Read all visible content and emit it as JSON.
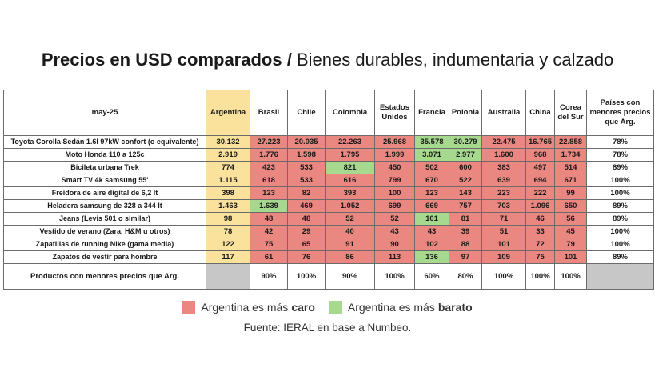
{
  "title": {
    "bold": "Precios en USD comparados /",
    "light": "Bienes durables, indumentaria y calzado"
  },
  "chart_data": {
    "type": "table",
    "corner_label": "may-25",
    "columns": [
      "Argentina",
      "Brasil",
      "Chile",
      "Colombia",
      "Estados Unidos",
      "Francia",
      "Polonia",
      "Australia",
      "China",
      "Corea del Sur",
      "Países con menores precios que Arg."
    ],
    "rows": [
      {
        "product": "Toyota Corolla Sedán 1.6l 97kW confort (o equivalente)",
        "values": [
          "30.132",
          "27.223",
          "20.035",
          "22.263",
          "25.968",
          "35.578",
          "30.279",
          "22.475",
          "16.765",
          "22.858"
        ],
        "status": [
          "arg",
          "caro",
          "caro",
          "caro",
          "caro",
          "barato",
          "barato",
          "caro",
          "caro",
          "caro"
        ],
        "share": "78%"
      },
      {
        "product": "Moto Honda 110 a 125c",
        "values": [
          "2.919",
          "1.776",
          "1.598",
          "1.795",
          "1.999",
          "3.071",
          "2.977",
          "1.600",
          "968",
          "1.734"
        ],
        "status": [
          "arg",
          "caro",
          "caro",
          "caro",
          "caro",
          "barato",
          "barato",
          "caro",
          "caro",
          "caro"
        ],
        "share": "78%"
      },
      {
        "product": "Bicileta urbana Trek",
        "values": [
          "774",
          "423",
          "533",
          "821",
          "450",
          "502",
          "600",
          "383",
          "497",
          "514"
        ],
        "status": [
          "arg",
          "caro",
          "caro",
          "barato",
          "caro",
          "caro",
          "caro",
          "caro",
          "caro",
          "caro"
        ],
        "share": "89%"
      },
      {
        "product": "Smart TV 4k samsung 55'",
        "values": [
          "1.115",
          "618",
          "533",
          "616",
          "799",
          "670",
          "522",
          "639",
          "694",
          "671"
        ],
        "status": [
          "arg",
          "caro",
          "caro",
          "caro",
          "caro",
          "caro",
          "caro",
          "caro",
          "caro",
          "caro"
        ],
        "share": "100%"
      },
      {
        "product": "Freidora de aire digital de 6,2 lt",
        "values": [
          "398",
          "123",
          "82",
          "393",
          "100",
          "123",
          "143",
          "223",
          "222",
          "99"
        ],
        "status": [
          "arg",
          "caro",
          "caro",
          "caro",
          "caro",
          "caro",
          "caro",
          "caro",
          "caro",
          "caro"
        ],
        "share": "100%"
      },
      {
        "product": "Heladera samsung de 328 a 344 lt",
        "values": [
          "1.463",
          "1.639",
          "469",
          "1.052",
          "699",
          "669",
          "757",
          "703",
          "1.096",
          "650"
        ],
        "status": [
          "arg",
          "barato",
          "caro",
          "caro",
          "caro",
          "caro",
          "caro",
          "caro",
          "caro",
          "caro"
        ],
        "share": "89%"
      },
      {
        "product": "Jeans (Levis 501 o similar)",
        "values": [
          "98",
          "48",
          "48",
          "52",
          "52",
          "101",
          "81",
          "71",
          "46",
          "56"
        ],
        "status": [
          "arg",
          "caro",
          "caro",
          "caro",
          "caro",
          "barato",
          "caro",
          "caro",
          "caro",
          "caro"
        ],
        "share": "89%"
      },
      {
        "product": "Vestido de verano (Zara, H&M u otros)",
        "values": [
          "78",
          "42",
          "29",
          "40",
          "43",
          "43",
          "39",
          "51",
          "33",
          "45"
        ],
        "status": [
          "arg",
          "caro",
          "caro",
          "caro",
          "caro",
          "caro",
          "caro",
          "caro",
          "caro",
          "caro"
        ],
        "share": "100%"
      },
      {
        "product": "Zapatillas de running Nike (gama media)",
        "values": [
          "122",
          "75",
          "65",
          "91",
          "90",
          "102",
          "88",
          "101",
          "72",
          "79"
        ],
        "status": [
          "arg",
          "caro",
          "caro",
          "caro",
          "caro",
          "caro",
          "caro",
          "caro",
          "caro",
          "caro"
        ],
        "share": "100%"
      },
      {
        "product": "Zapatos de vestir para hombre",
        "values": [
          "117",
          "61",
          "76",
          "86",
          "113",
          "136",
          "97",
          "109",
          "75",
          "101"
        ],
        "status": [
          "arg",
          "caro",
          "caro",
          "caro",
          "caro",
          "barato",
          "caro",
          "caro",
          "caro",
          "caro"
        ],
        "share": "89%"
      }
    ],
    "summary": {
      "label": "Productos con menores precios que Arg.",
      "values": [
        "",
        "90%",
        "100%",
        "90%",
        "100%",
        "60%",
        "80%",
        "100%",
        "100%",
        "100%"
      ]
    }
  },
  "legend": {
    "caro": {
      "text": "Argentina es más",
      "strong": "caro",
      "color": "#e98780"
    },
    "barato": {
      "text": "Argentina es más",
      "strong": "barato",
      "color": "#a6d98e"
    }
  },
  "source": "Fuente: IERAL en base a Numbeo."
}
